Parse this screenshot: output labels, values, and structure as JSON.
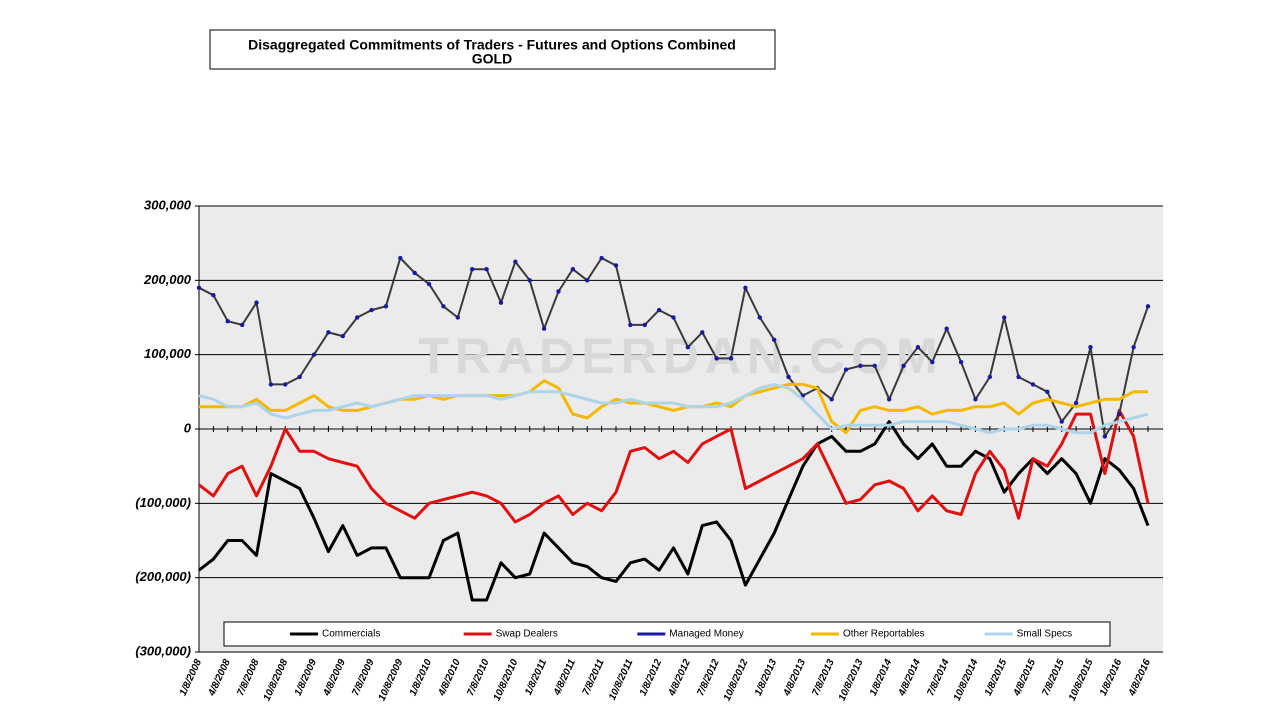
{
  "chart_data": {
    "type": "line",
    "title": "Disaggregated Commitments of Traders - Futures and Options Combined",
    "subtitle": "GOLD",
    "watermark": "TRADERDAN.COM",
    "categories": [
      "1/8/2008",
      null,
      "4/8/2008",
      null,
      "7/8/2008",
      null,
      "10/8/2008",
      null,
      "1/8/2009",
      null,
      "4/8/2009",
      null,
      "7/8/2009",
      null,
      "10/8/2009",
      null,
      "1/8/2010",
      null,
      "4/8/2010",
      null,
      "7/8/2010",
      null,
      "10/8/2010",
      null,
      "1/8/2011",
      null,
      "4/8/2011",
      null,
      "7/8/2011",
      null,
      "10/8/2011",
      null,
      "1/8/2012",
      null,
      "4/8/2012",
      null,
      "7/8/2012",
      null,
      "10/8/2012",
      null,
      "1/8/2013",
      null,
      "4/8/2013",
      null,
      "7/8/2013",
      null,
      "10/8/2013",
      null,
      "1/8/2014",
      null,
      "4/8/2014",
      null,
      "7/8/2014",
      null,
      "10/8/2014",
      null,
      "1/8/2015",
      null,
      "4/8/2015",
      null,
      "7/8/2015",
      null,
      "10/8/2015",
      null,
      "1/8/2016",
      null,
      "4/8/2016"
    ],
    "series": [
      {
        "name": "Commercials",
        "color": "#000000",
        "values": [
          -190000,
          -175000,
          -150000,
          -150000,
          -170000,
          -60000,
          -70000,
          -80000,
          -120000,
          -165000,
          -130000,
          -170000,
          -160000,
          -160000,
          -200000,
          -200000,
          -200000,
          -150000,
          -140000,
          -230000,
          -230000,
          -180000,
          -200000,
          -195000,
          -140000,
          -160000,
          -180000,
          -185000,
          -200000,
          -205000,
          -180000,
          -175000,
          -190000,
          -160000,
          -195000,
          -130000,
          -125000,
          -150000,
          -210000,
          -175000,
          -140000,
          -95000,
          -50000,
          -20000,
          -10000,
          -30000,
          -30000,
          -20000,
          10000,
          -20000,
          -40000,
          -20000,
          -50000,
          -50000,
          -30000,
          -40000,
          -85000,
          -60000,
          -40000,
          -60000,
          -40000,
          -60000,
          -100000,
          -40000,
          -55000,
          -80000,
          -130000
        ]
      },
      {
        "name": "Swap Dealers",
        "color": "#e01010",
        "values": [
          -75000,
          -90000,
          -60000,
          -50000,
          -90000,
          -50000,
          0,
          -30000,
          -30000,
          -40000,
          -45000,
          -50000,
          -80000,
          -100000,
          -110000,
          -120000,
          -100000,
          -95000,
          -90000,
          -85000,
          -90000,
          -100000,
          -125000,
          -115000,
          -100000,
          -90000,
          -115000,
          -100000,
          -110000,
          -85000,
          -30000,
          -25000,
          -40000,
          -30000,
          -45000,
          -20000,
          -10000,
          0,
          -80000,
          -70000,
          -60000,
          -50000,
          -40000,
          -20000,
          -60000,
          -100000,
          -95000,
          -75000,
          -70000,
          -80000,
          -110000,
          -90000,
          -110000,
          -115000,
          -60000,
          -30000,
          -55000,
          -120000,
          -40000,
          -50000,
          -20000,
          20000,
          20000,
          -60000,
          25000,
          -10000,
          -100000
        ]
      },
      {
        "name": "Managed Money",
        "color": "#1a1aa0",
        "values": [
          190000,
          180000,
          145000,
          140000,
          170000,
          60000,
          60000,
          70000,
          100000,
          130000,
          125000,
          150000,
          160000,
          165000,
          230000,
          210000,
          195000,
          165000,
          150000,
          215000,
          215000,
          170000,
          225000,
          200000,
          135000,
          185000,
          215000,
          200000,
          230000,
          220000,
          140000,
          140000,
          160000,
          150000,
          110000,
          130000,
          95000,
          95000,
          190000,
          150000,
          120000,
          70000,
          45000,
          55000,
          40000,
          80000,
          85000,
          85000,
          40000,
          85000,
          110000,
          90000,
          135000,
          90000,
          40000,
          70000,
          150000,
          70000,
          60000,
          50000,
          10000,
          35000,
          110000,
          -10000,
          20000,
          110000,
          165000
        ]
      },
      {
        "name": "Other Reportables",
        "color": "#f5b800",
        "values": [
          30000,
          30000,
          30000,
          30000,
          40000,
          25000,
          25000,
          35000,
          45000,
          30000,
          25000,
          25000,
          30000,
          35000,
          40000,
          40000,
          45000,
          40000,
          45000,
          45000,
          45000,
          45000,
          45000,
          50000,
          65000,
          55000,
          20000,
          15000,
          30000,
          40000,
          35000,
          35000,
          30000,
          25000,
          30000,
          30000,
          35000,
          30000,
          45000,
          50000,
          55000,
          60000,
          60000,
          55000,
          10000,
          -5000,
          25000,
          30000,
          25000,
          25000,
          30000,
          20000,
          25000,
          25000,
          30000,
          30000,
          35000,
          20000,
          35000,
          40000,
          35000,
          30000,
          35000,
          40000,
          40000,
          50000,
          50000
        ]
      },
      {
        "name": "Small Specs",
        "color": "#aed4ea",
        "values": [
          45000,
          40000,
          30000,
          30000,
          35000,
          20000,
          15000,
          20000,
          25000,
          25000,
          30000,
          35000,
          30000,
          35000,
          40000,
          45000,
          45000,
          45000,
          45000,
          45000,
          45000,
          40000,
          45000,
          50000,
          50000,
          50000,
          45000,
          40000,
          35000,
          35000,
          40000,
          35000,
          35000,
          35000,
          30000,
          30000,
          30000,
          35000,
          45000,
          55000,
          60000,
          55000,
          40000,
          20000,
          0,
          5000,
          5000,
          5000,
          5000,
          10000,
          10000,
          10000,
          10000,
          5000,
          0,
          -5000,
          0,
          0,
          5000,
          5000,
          0,
          -5000,
          -5000,
          5000,
          10000,
          15000,
          20000
        ]
      }
    ],
    "ylim": [
      -300000,
      300000
    ],
    "yticks": [
      {
        "value": -300000,
        "label": "(300,000)"
      },
      {
        "value": -200000,
        "label": "(200,000)"
      },
      {
        "value": -100000,
        "label": "(100,000)"
      },
      0,
      {
        "value": 100000,
        "label": "100,000"
      },
      {
        "value": 200000,
        "label": "200,000"
      },
      {
        "value": 300000,
        "label": "300,000"
      }
    ],
    "grid": true,
    "legend": "bottom"
  }
}
